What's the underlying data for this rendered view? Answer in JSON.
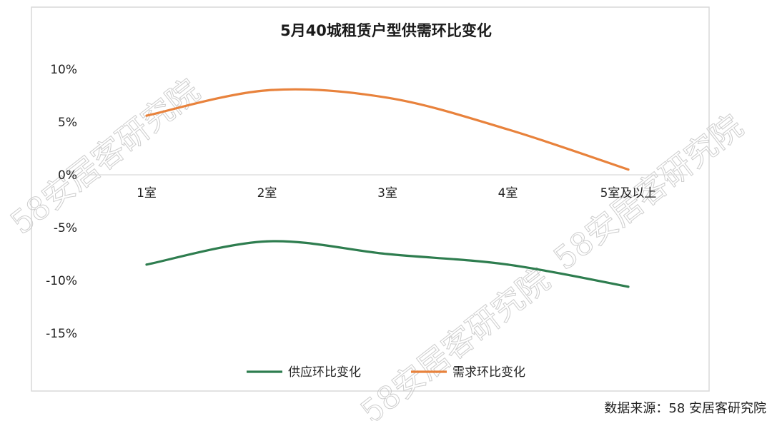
{
  "chart_data": {
    "type": "line",
    "title": "5月40城租赁户型供需环比变化",
    "categories": [
      "1室",
      "2室",
      "3室",
      "4室",
      "5室及以上"
    ],
    "series": [
      {
        "name": "供应环比变化",
        "color": "#2e7d4f",
        "values": [
          -8.5,
          -6.3,
          -7.5,
          -8.5,
          -10.6
        ]
      },
      {
        "name": "需求环比变化",
        "color": "#e8823c",
        "values": [
          5.6,
          8.0,
          7.3,
          4.3,
          0.5
        ]
      }
    ],
    "y_ticks": [
      "10%",
      "5%",
      "0%",
      "-5%",
      "-10%",
      "-15%"
    ],
    "ylim": [
      -15,
      10
    ],
    "legend_position": "bottom",
    "grid": false,
    "smooth": true
  },
  "source_note": "数据来源：58 安居客研究院",
  "watermark": "58安居客研究院"
}
